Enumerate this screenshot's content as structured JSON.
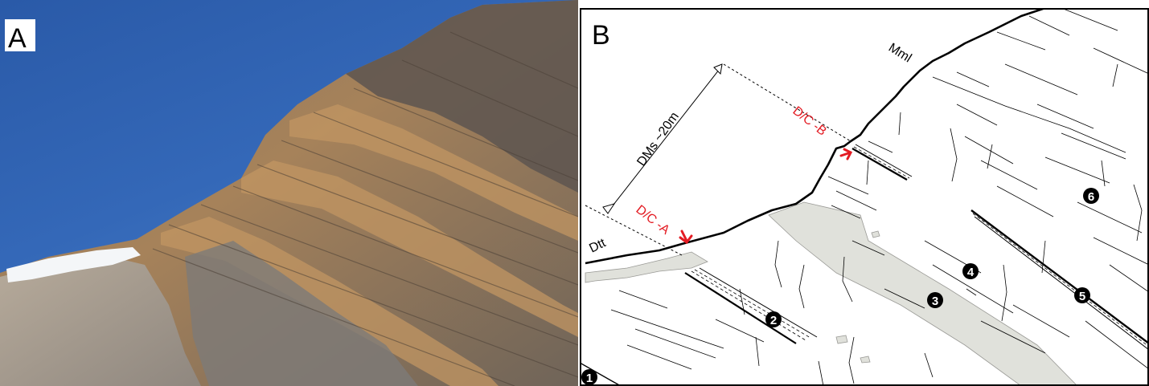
{
  "panels": {
    "a": {
      "letter": "A"
    },
    "b": {
      "letter": "B"
    }
  },
  "annotations": {
    "mml": "Mml",
    "dtt": "Dtt",
    "thickness": "DMs ~20m",
    "dc_a": "D/C -A",
    "dc_b": "D/C -B"
  },
  "markers": [
    "1",
    "2",
    "3",
    "4",
    "5",
    "6"
  ],
  "colors": {
    "sky": "#2f62b2",
    "red_label": "#e31b23",
    "grey_unit": "#e0e1db",
    "line": "#000000"
  }
}
